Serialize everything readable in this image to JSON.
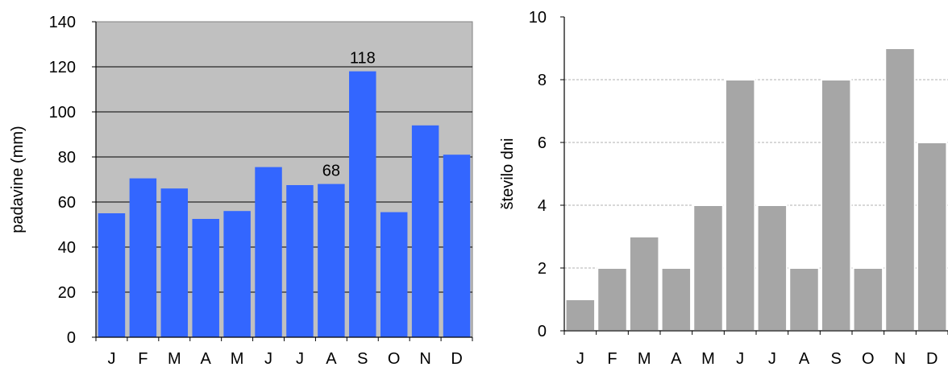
{
  "chart_data": [
    {
      "type": "bar",
      "title": "",
      "xlabel": "",
      "ylabel": "padavine (mm)",
      "categories": [
        "J",
        "F",
        "M",
        "A",
        "M",
        "J",
        "J",
        "A",
        "S",
        "O",
        "N",
        "D"
      ],
      "values": [
        55,
        70.5,
        66,
        52.5,
        56,
        75.5,
        67.5,
        68,
        118,
        55.5,
        94,
        81
      ],
      "ylim": [
        0,
        140
      ],
      "yticks": [
        "0",
        "20",
        "40",
        "60",
        "80",
        "100",
        "120",
        "140"
      ],
      "data_labels": [
        {
          "category_index": 7,
          "text": "68"
        },
        {
          "category_index": 8,
          "text": "118"
        }
      ],
      "grid": true,
      "bar_color": "#3366ff",
      "plot_background": "#c0c0c0"
    },
    {
      "type": "bar",
      "title": "",
      "xlabel": "",
      "ylabel": "število dni",
      "categories": [
        "J",
        "F",
        "M",
        "A",
        "M",
        "J",
        "J",
        "A",
        "S",
        "O",
        "N",
        "D"
      ],
      "values": [
        1,
        2,
        3,
        2,
        4,
        8,
        4,
        2,
        8,
        2,
        9,
        6
      ],
      "ylim": [
        0,
        10
      ],
      "yticks": [
        "0",
        "2",
        "4",
        "6",
        "8",
        "10"
      ],
      "grid": true,
      "bar_color": "#a6a6a6",
      "plot_background": "#ffffff"
    }
  ]
}
